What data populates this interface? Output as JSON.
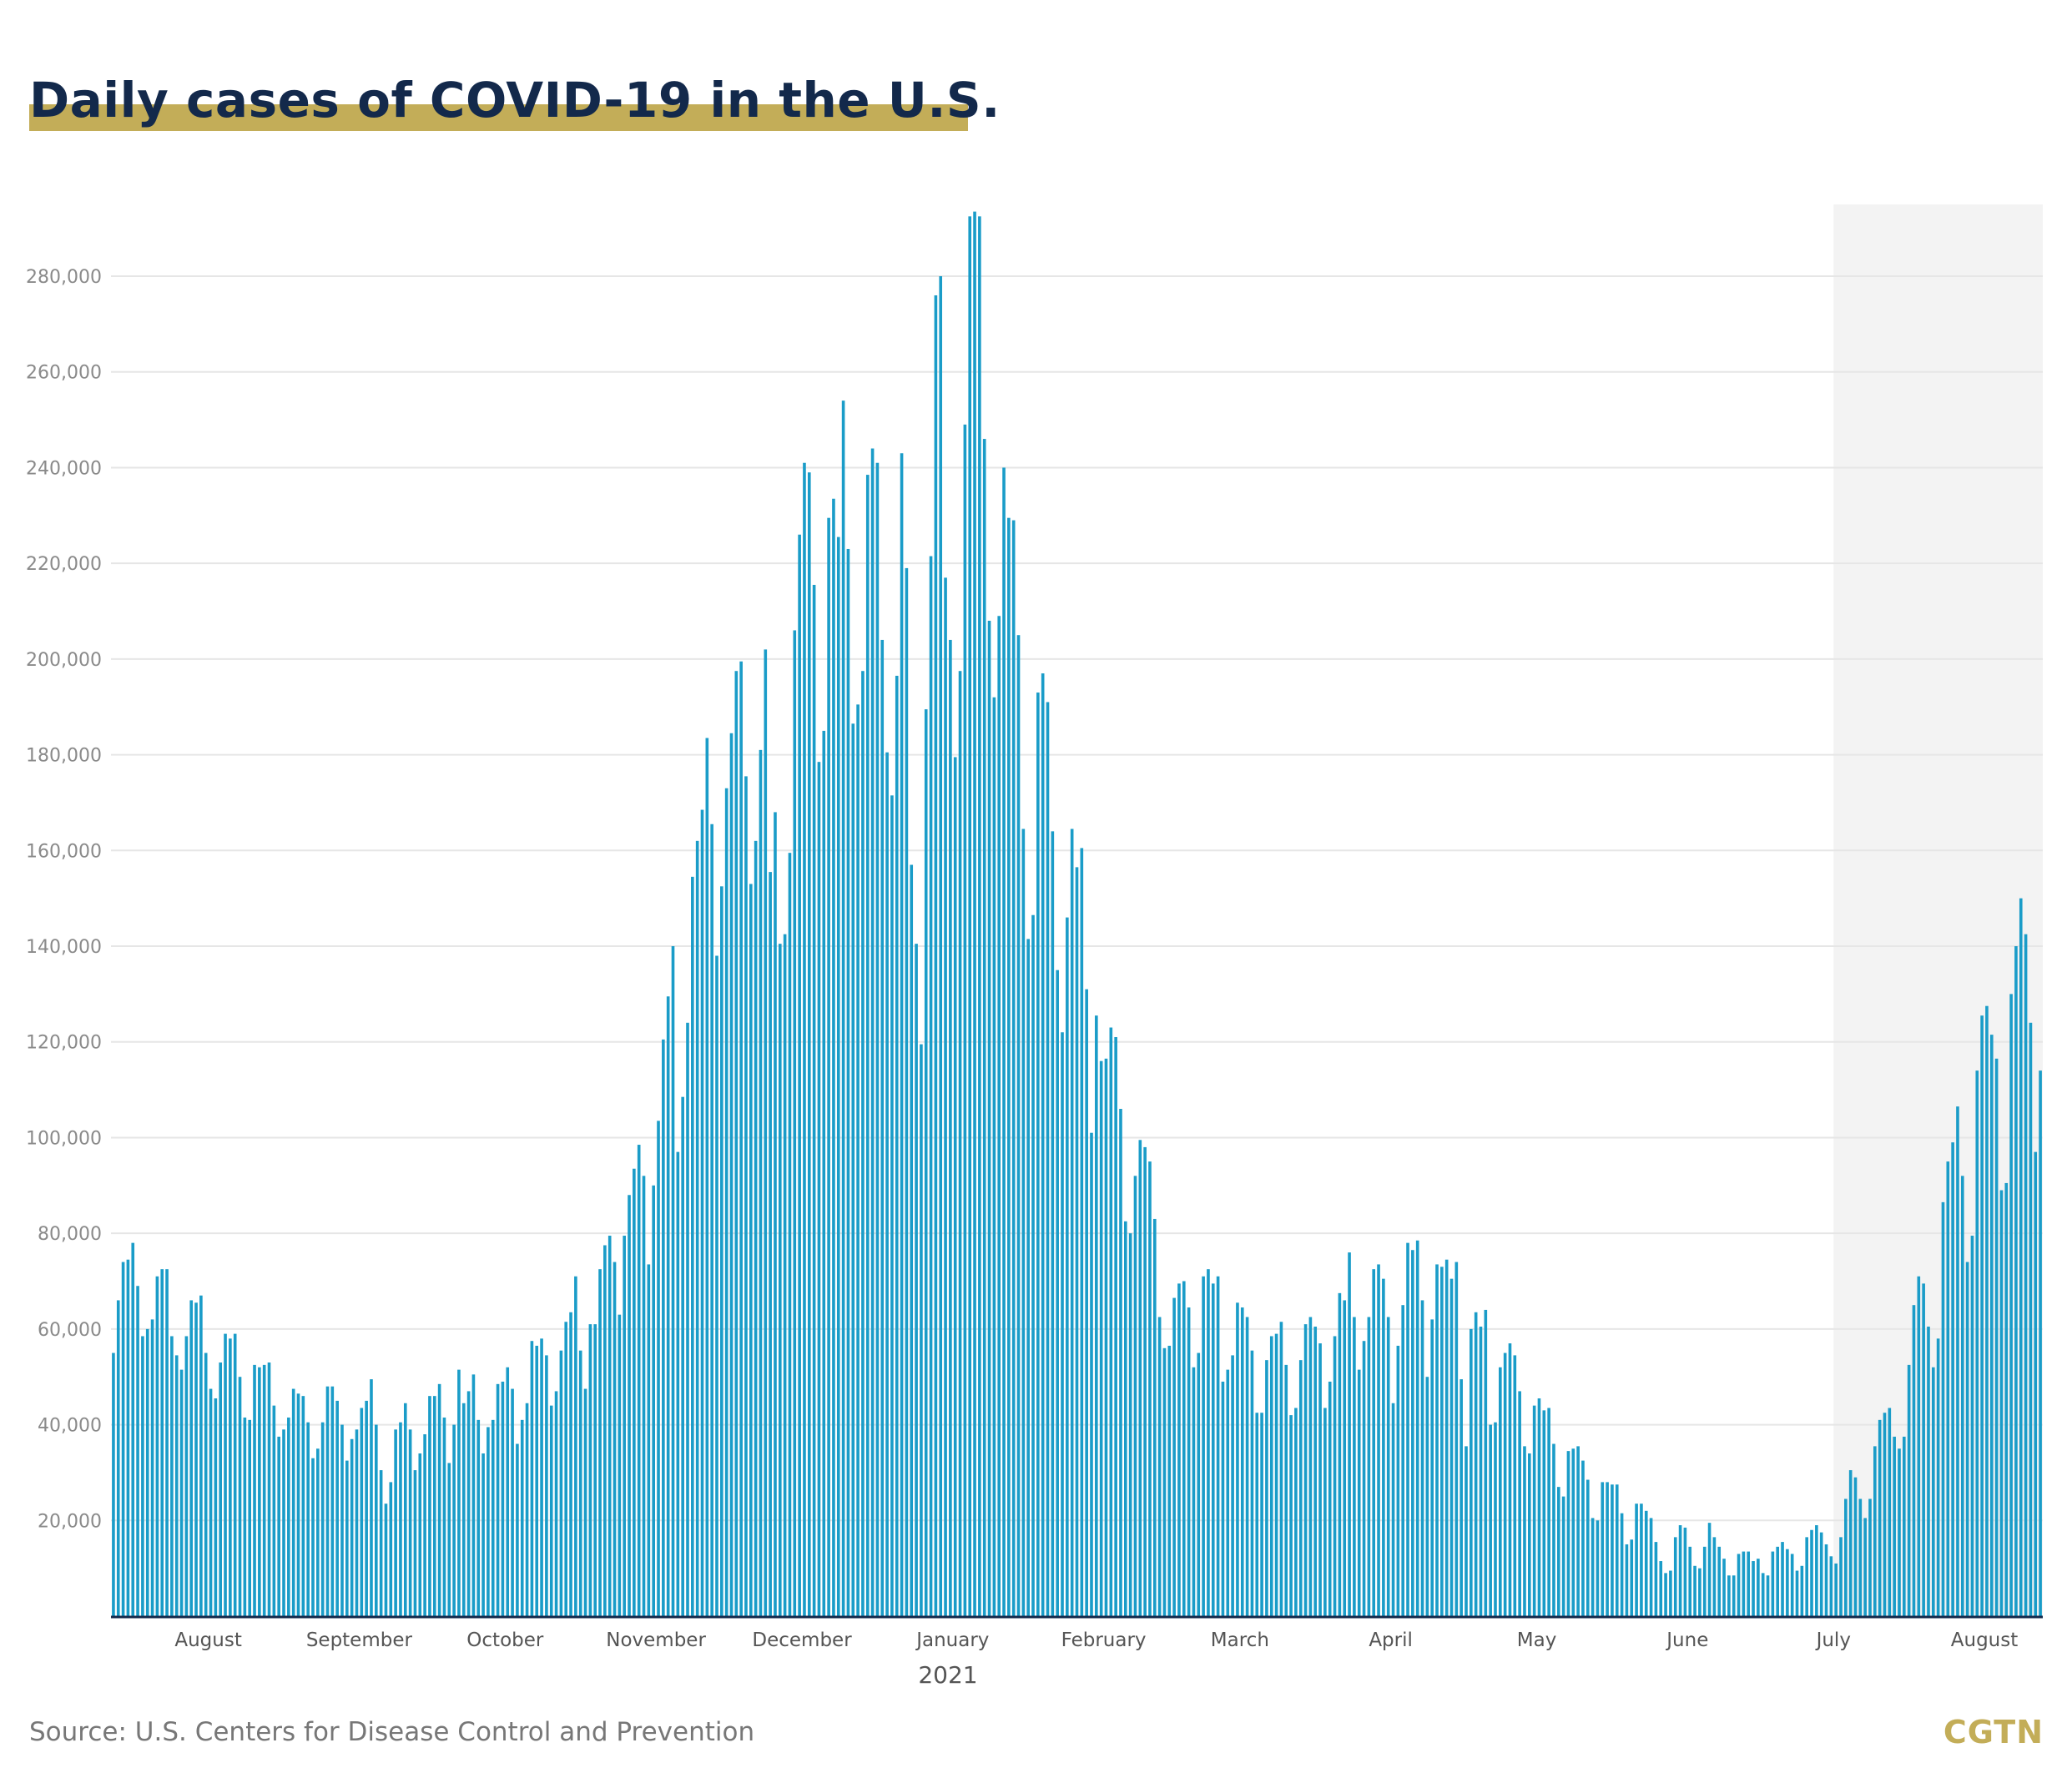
{
  "title": "Daily cases of COVID-19 in the U.S.",
  "source": "Source: U.S. Centers for Disease Control and Prevention",
  "logo": "CGTN",
  "colors": {
    "bar": "#1a9cc8",
    "title": "#13294b",
    "title_underline": "#c3ad58",
    "highlight": "#f3f3f3",
    "gridline": "#e6e6e6",
    "axis": "#13294b"
  },
  "chart_data": {
    "type": "bar",
    "title": "Daily cases of COVID-19 in the U.S.",
    "xlabel": "",
    "ylabel": "",
    "ylim": [
      0,
      295000
    ],
    "grid": true,
    "legend": "none",
    "yticks": [
      20000,
      40000,
      60000,
      80000,
      100000,
      120000,
      140000,
      160000,
      180000,
      200000,
      220000,
      240000,
      260000,
      280000
    ],
    "ytick_labels": [
      "20,000",
      "40,000",
      "60,000",
      "80,000",
      "100,000",
      "120,000",
      "140,000",
      "160,000",
      "180,000",
      "200,000",
      "220,000",
      "240,000",
      "260,000",
      "280,000"
    ],
    "month_labels": [
      {
        "label": "August",
        "day": 20
      },
      {
        "label": "September",
        "day": 51
      },
      {
        "label": "October",
        "day": 81
      },
      {
        "label": "November",
        "day": 112
      },
      {
        "label": "December",
        "day": 142
      },
      {
        "label": "January",
        "day": 173
      },
      {
        "label": "February",
        "day": 204
      },
      {
        "label": "March",
        "day": 232
      },
      {
        "label": "April",
        "day": 263
      },
      {
        "label": "May",
        "day": 293
      },
      {
        "label": "June",
        "day": 324
      },
      {
        "label": "July",
        "day": 354
      },
      {
        "label": "August",
        "day": 385
      }
    ],
    "year_label": "2021",
    "year_label_day": 172,
    "highlight_start_day": 354,
    "values": [
      55000,
      66000,
      74000,
      74500,
      78000,
      69000,
      58500,
      60000,
      62000,
      71000,
      72500,
      72500,
      58500,
      54500,
      51500,
      58500,
      66000,
      65500,
      67000,
      55000,
      47500,
      45500,
      53000,
      59000,
      58000,
      59000,
      50000,
      41500,
      41000,
      52500,
      52000,
      52500,
      53000,
      44000,
      37500,
      39000,
      41500,
      47500,
      46500,
      46000,
      40500,
      33000,
      35000,
      40500,
      48000,
      48000,
      45000,
      40000,
      32500,
      37000,
      39000,
      43500,
      45000,
      49500,
      40000,
      30500,
      23500,
      28000,
      39000,
      40500,
      44500,
      39000,
      30500,
      34000,
      38000,
      46000,
      46000,
      48500,
      41500,
      32000,
      40000,
      51500,
      44500,
      47000,
      50500,
      41000,
      34000,
      39500,
      41000,
      48500,
      49000,
      52000,
      47500,
      36000,
      41000,
      44500,
      57500,
      56500,
      58000,
      54500,
      44000,
      47000,
      55500,
      61500,
      63500,
      71000,
      55500,
      47500,
      61000,
      61000,
      72500,
      77500,
      79500,
      74000,
      63000,
      79500,
      88000,
      93500,
      98500,
      92000,
      73500,
      90000,
      103500,
      120500,
      129500,
      140000,
      97000,
      108500,
      124000,
      154500,
      162000,
      168500,
      183500,
      165500,
      138000,
      152500,
      173000,
      184500,
      197500,
      199500,
      175500,
      153000,
      162000,
      181000,
      202000,
      155500,
      168000,
      140500,
      142500,
      159500,
      206000,
      226000,
      241000,
      239000,
      215500,
      178500,
      185000,
      229500,
      233500,
      225500,
      254000,
      223000,
      186500,
      190500,
      197500,
      238500,
      244000,
      241000,
      204000,
      180500,
      171500,
      196500,
      243000,
      219000,
      157000,
      140500,
      119500,
      189500,
      221500,
      276000,
      280000,
      217000,
      204000,
      179500,
      197500,
      249000,
      292500,
      293500,
      292500,
      246000,
      208000,
      192000,
      209000,
      240000,
      229500,
      229000,
      205000,
      164500,
      141500,
      146500,
      193000,
      197000,
      191000,
      164000,
      135000,
      122000,
      146000,
      164500,
      156500,
      160500,
      131000,
      101000,
      125500,
      116000,
      116500,
      123000,
      121000,
      106000,
      82500,
      80000,
      92000,
      99500,
      98000,
      95000,
      83000,
      62500,
      56000,
      56500,
      66500,
      69500,
      70000,
      64500,
      52000,
      55000,
      71000,
      72500,
      69500,
      71000,
      49000,
      51500,
      54500,
      65500,
      64500,
      62500,
      55500,
      42500,
      42500,
      53500,
      58500,
      59000,
      61500,
      52500,
      42000,
      43500,
      53500,
      61000,
      62500,
      60500,
      57000,
      43500,
      49000,
      58500,
      67500,
      66000,
      76000,
      62500,
      51500,
      57500,
      62500,
      72500,
      73500,
      70500,
      62500,
      44500,
      56500,
      65000,
      78000,
      76500,
      78500,
      66000,
      50000,
      62000,
      73500,
      73000,
      74500,
      70500,
      74000,
      49500,
      35500,
      60000,
      63500,
      60500,
      64000,
      40000,
      40500,
      52000,
      55000,
      57000,
      54500,
      47000,
      35500,
      34000,
      44000,
      45500,
      43000,
      43500,
      36000,
      27000,
      25000,
      34500,
      35000,
      35500,
      32500,
      28500,
      20500,
      20000,
      28000,
      28000,
      27500,
      27500,
      21500,
      15000,
      16000,
      23500,
      23500,
      22000,
      20500,
      15500,
      11500,
      9000,
      9500,
      16500,
      19000,
      18500,
      14500,
      10500,
      10000,
      14500,
      19500,
      16500,
      14500,
      12000,
      8500,
      8500,
      13000,
      13500,
      13500,
      11500,
      12000,
      9000,
      8500,
      13500,
      14500,
      15500,
      14000,
      13000,
      9500,
      10500,
      16500,
      18000,
      19000,
      17500,
      15000,
      12500,
      11000,
      16500,
      24500,
      30500,
      29000,
      24500,
      20500,
      24500,
      35500,
      41000,
      42500,
      43500,
      37500,
      35000,
      37500,
      52500,
      65000,
      71000,
      69500,
      60500,
      52000,
      58000,
      86500,
      95000,
      99000,
      106500,
      92000,
      74000,
      79500,
      114000,
      125500,
      127500,
      121500,
      116500,
      89000,
      90500,
      130000,
      140000,
      150000,
      142500,
      124000,
      97000,
      114000
    ]
  }
}
